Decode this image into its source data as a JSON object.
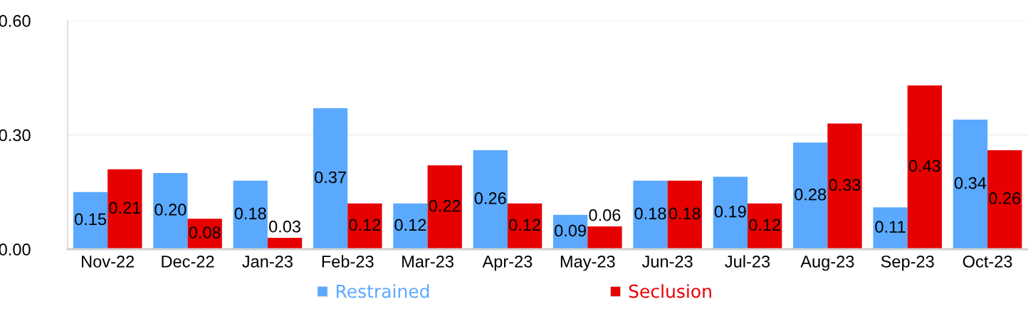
{
  "chart_data": {
    "type": "bar",
    "categories": [
      "Nov-22",
      "Dec-22",
      "Jan-23",
      "Feb-23",
      "Mar-23",
      "Apr-23",
      "May-23",
      "Jun-23",
      "Jul-23",
      "Aug-23",
      "Sep-23",
      "Oct-23"
    ],
    "series": [
      {
        "name": "Restrained",
        "color": "#5aa9ff",
        "values": [
          0.15,
          0.2,
          0.18,
          0.37,
          0.12,
          0.26,
          0.09,
          0.18,
          0.19,
          0.28,
          0.11,
          0.34
        ],
        "value_labels": [
          "0.15",
          "0.20",
          "0.18",
          "0.37",
          "0.12",
          "0.26",
          "0.09",
          "0.18",
          "0.19",
          "0.28",
          "0.11",
          "0.34"
        ]
      },
      {
        "name": "Seclusion",
        "color": "#e60000",
        "values": [
          0.21,
          0.08,
          0.03,
          0.12,
          0.22,
          0.12,
          0.06,
          0.18,
          0.12,
          0.33,
          0.43,
          0.26
        ],
        "value_labels": [
          "0.21",
          "0.08",
          "0.03",
          "0.12",
          "0.22",
          "0.12",
          "0.06",
          "0.18",
          "0.12",
          "0.33",
          "0.43",
          "0.26"
        ]
      }
    ],
    "ylim": [
      0,
      0.6
    ],
    "yticks": [
      {
        "value": 0,
        "label": "0.00"
      },
      {
        "value": 0.3,
        "label": "0.30"
      },
      {
        "value": 0.6,
        "label": "0.60"
      }
    ],
    "grid": "y",
    "legend": "bottom"
  }
}
